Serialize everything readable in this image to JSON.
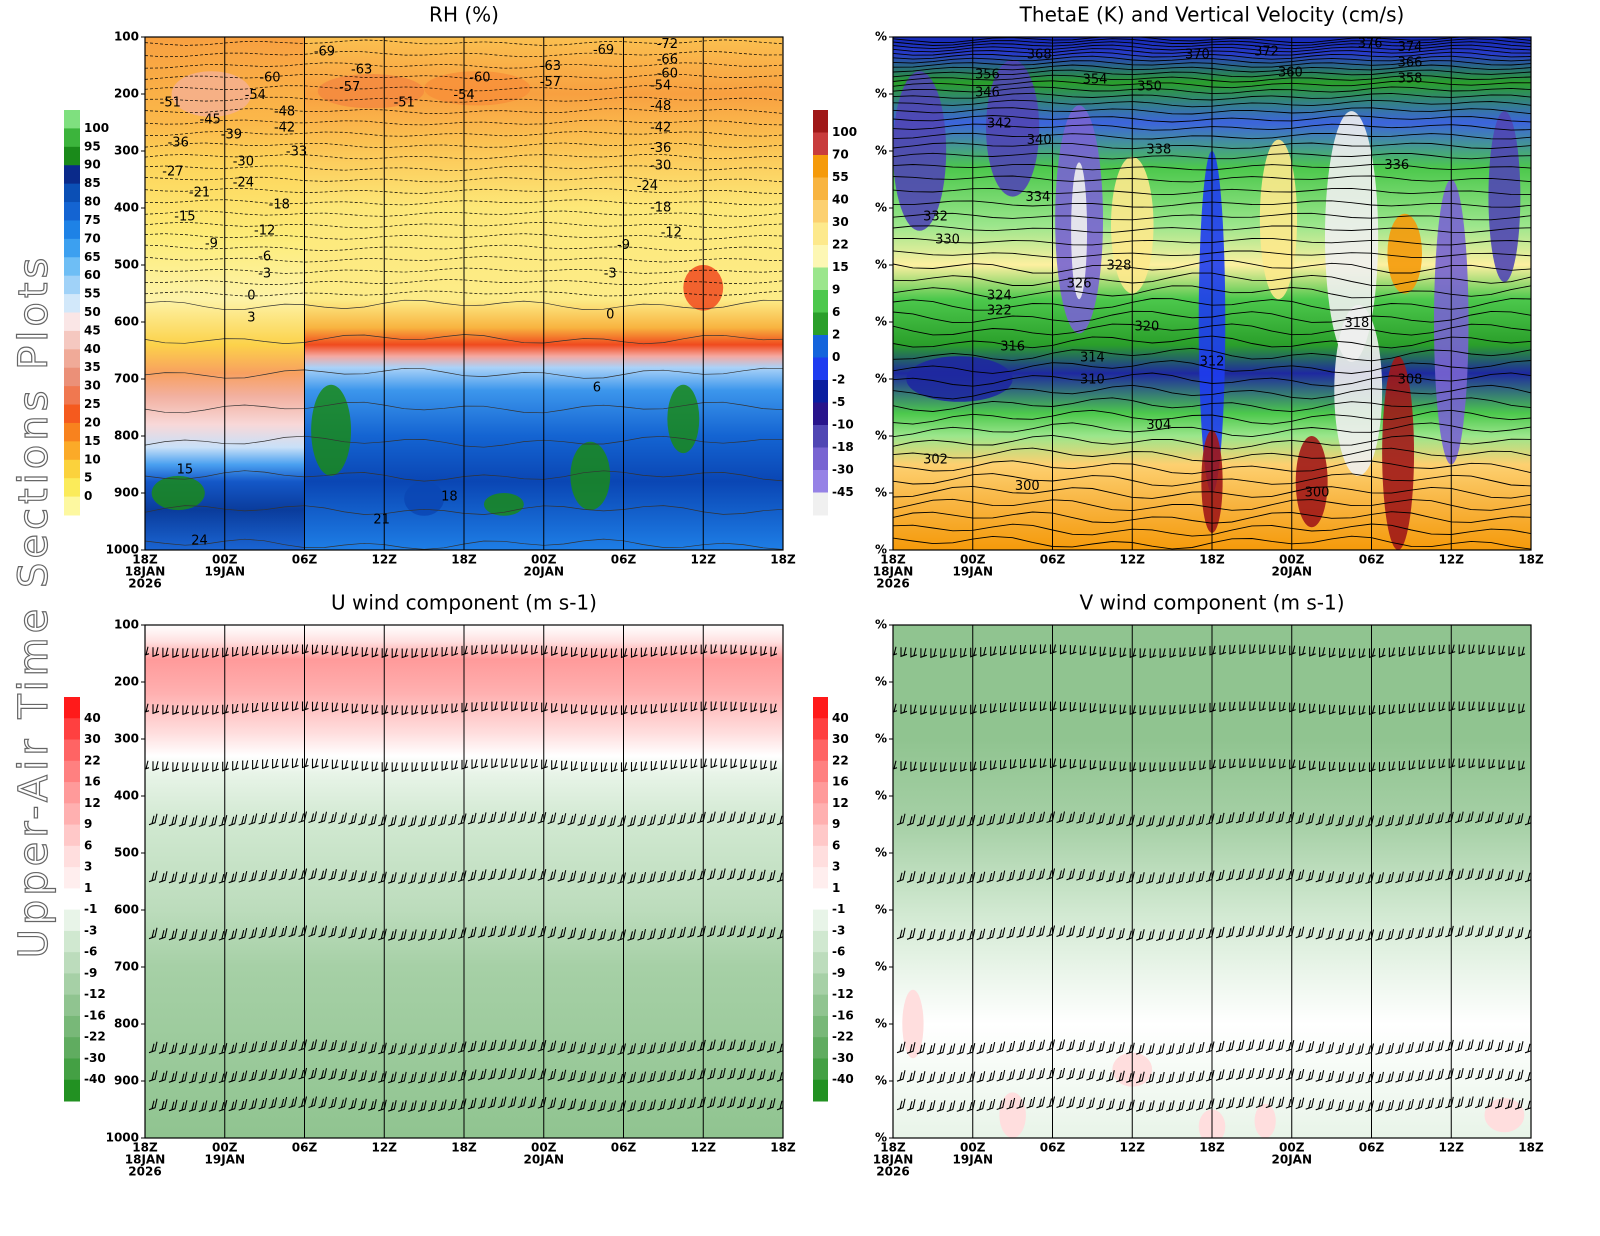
{
  "page_title": "Upper-Air Time Sections Plots",
  "chart_data": [
    {
      "type": "contour",
      "title": "RH (%)",
      "xlim": [
        0,
        48
      ],
      "xticks": [
        {
          "value": 0,
          "label": "18Z"
        },
        {
          "value": 6,
          "label": "00Z"
        },
        {
          "value": 12,
          "label": "06Z"
        },
        {
          "value": 18,
          "label": "12Z"
        },
        {
          "value": 24,
          "label": "18Z"
        },
        {
          "value": 30,
          "label": "00Z"
        },
        {
          "value": 36,
          "label": "06Z"
        },
        {
          "value": 42,
          "label": "12Z"
        },
        {
          "value": 48,
          "label": "18Z"
        }
      ],
      "x_date_labels": [
        {
          "value": 0,
          "lines": [
            "18JAN",
            "2026"
          ]
        },
        {
          "value": 6,
          "lines": [
            "19JAN"
          ]
        },
        {
          "value": 30,
          "lines": [
            "20JAN"
          ]
        }
      ],
      "ylim": [
        1000,
        100
      ],
      "yticks": [
        100,
        200,
        300,
        400,
        500,
        600,
        700,
        800,
        900,
        1000
      ],
      "colorbar": {
        "levels": [
          100,
          95,
          90,
          85,
          80,
          75,
          70,
          65,
          60,
          55,
          50,
          45,
          40,
          35,
          30,
          25,
          20,
          15,
          10,
          5,
          0
        ],
        "colors": [
          "#7fe07f",
          "#3cb43c",
          "#1a8a1a",
          "#0a2a8a",
          "#0b4fb5",
          "#1464d2",
          "#1e82e6",
          "#3ca0f0",
          "#6ebef5",
          "#a0d2f8",
          "#d2e8fa",
          "#fae6e6",
          "#f5c8c0",
          "#f0aa98",
          "#eb9078",
          "#f07850",
          "#f55a1e",
          "#f8821e",
          "#fbaa28",
          "#fbd23c",
          "#fbeb5a",
          "#fdf8a0"
        ]
      },
      "contour_labels": [
        {
          "value": -69,
          "time": 13.5,
          "pressure": 126
        },
        {
          "value": -63,
          "time": 16.3,
          "pressure": 158
        },
        {
          "value": -60,
          "time": 9.4,
          "pressure": 172
        },
        {
          "value": -57,
          "time": 15.4,
          "pressure": 189
        },
        {
          "value": -54,
          "time": 8.3,
          "pressure": 203
        },
        {
          "value": -51,
          "time": 1.9,
          "pressure": 216
        },
        {
          "value": -48,
          "time": 10.5,
          "pressure": 232
        },
        {
          "value": -45,
          "time": 4.9,
          "pressure": 246
        },
        {
          "value": -42,
          "time": 10.5,
          "pressure": 260
        },
        {
          "value": -39,
          "time": 6.5,
          "pressure": 272
        },
        {
          "value": -36,
          "time": 2.5,
          "pressure": 286
        },
        {
          "value": -33,
          "time": 11.4,
          "pressure": 302
        },
        {
          "value": -30,
          "time": 7.4,
          "pressure": 319
        },
        {
          "value": -27,
          "time": 2.1,
          "pressure": 337
        },
        {
          "value": -24,
          "time": 7.4,
          "pressure": 356
        },
        {
          "value": -21,
          "time": 4.1,
          "pressure": 374
        },
        {
          "value": -18,
          "time": 10.1,
          "pressure": 395
        },
        {
          "value": -15,
          "time": 3.0,
          "pressure": 416
        },
        {
          "value": -12,
          "time": 9.0,
          "pressure": 440
        },
        {
          "value": -9,
          "time": 5.0,
          "pressure": 463
        },
        {
          "value": -6,
          "time": 9.0,
          "pressure": 486
        },
        {
          "value": -3,
          "time": 9.0,
          "pressure": 516
        },
        {
          "value": 0,
          "time": 8.0,
          "pressure": 554
        },
        {
          "value": 3,
          "time": 8.0,
          "pressure": 593
        },
        {
          "value": 6,
          "time": 34.0,
          "pressure": 716
        },
        {
          "value": 15,
          "time": 3.0,
          "pressure": 860
        },
        {
          "value": 18,
          "time": 22.9,
          "pressure": 907
        },
        {
          "value": 21,
          "time": 17.8,
          "pressure": 947
        },
        {
          "value": 24,
          "time": 4.1,
          "pressure": 984
        },
        {
          "value": -60,
          "time": 25.2,
          "pressure": 172
        },
        {
          "value": -54,
          "time": 24.0,
          "pressure": 203
        },
        {
          "value": -51,
          "time": 19.5,
          "pressure": 216
        },
        {
          "value": -63,
          "time": 30.5,
          "pressure": 152
        },
        {
          "value": -57,
          "time": 30.5,
          "pressure": 180
        },
        {
          "value": -69,
          "time": 34.5,
          "pressure": 124
        },
        {
          "value": -72,
          "time": 39.3,
          "pressure": 113
        },
        {
          "value": -66,
          "time": 39.3,
          "pressure": 140
        },
        {
          "value": -60,
          "time": 39.3,
          "pressure": 165
        },
        {
          "value": -54,
          "time": 38.8,
          "pressure": 186
        },
        {
          "value": -48,
          "time": 38.8,
          "pressure": 222
        },
        {
          "value": -42,
          "time": 38.8,
          "pressure": 260
        },
        {
          "value": -36,
          "time": 38.8,
          "pressure": 296
        },
        {
          "value": -30,
          "time": 38.8,
          "pressure": 326
        },
        {
          "value": -24,
          "time": 37.8,
          "pressure": 362
        },
        {
          "value": -18,
          "time": 38.8,
          "pressure": 400
        },
        {
          "value": -12,
          "time": 39.6,
          "pressure": 444
        },
        {
          "value": -9,
          "time": 36.0,
          "pressure": 466
        },
        {
          "value": -3,
          "time": 35.0,
          "pressure": 516
        },
        {
          "value": 0,
          "time": 35.0,
          "pressure": 588
        }
      ]
    },
    {
      "type": "contour",
      "title": "ThetaE (K) and Vertical Velocity (cm/s)",
      "xlim": [
        0,
        48
      ],
      "xticks": [
        {
          "value": 0,
          "label": "18Z"
        },
        {
          "value": 6,
          "label": "00Z"
        },
        {
          "value": 12,
          "label": "06Z"
        },
        {
          "value": 18,
          "label": "12Z"
        },
        {
          "value": 24,
          "label": "18Z"
        },
        {
          "value": 30,
          "label": "00Z"
        },
        {
          "value": 36,
          "label": "06Z"
        },
        {
          "value": 42,
          "label": "12Z"
        },
        {
          "value": 48,
          "label": "18Z"
        }
      ],
      "x_date_labels": [
        {
          "value": 0,
          "lines": [
            "18JAN",
            "2026"
          ]
        },
        {
          "value": 6,
          "lines": [
            "19JAN"
          ]
        },
        {
          "value": 30,
          "lines": [
            "20JAN"
          ]
        }
      ],
      "ylim": [
        1000,
        100
      ],
      "yticks": [
        {
          "value": 100,
          "label": "%"
        },
        {
          "value": 200,
          "label": "%"
        },
        {
          "value": 300,
          "label": "%"
        },
        {
          "value": 400,
          "label": "%"
        },
        {
          "value": 500,
          "label": "%"
        },
        {
          "value": 600,
          "label": "%"
        },
        {
          "value": 700,
          "label": "%"
        },
        {
          "value": 800,
          "label": "%"
        },
        {
          "value": 900,
          "label": "%"
        },
        {
          "value": 1000,
          "label": "%"
        }
      ],
      "colorbar": {
        "levels": [
          100,
          70,
          55,
          40,
          30,
          22,
          15,
          9,
          6,
          2,
          0,
          -2,
          -5,
          -10,
          -18,
          -30,
          -45
        ],
        "colors": [
          "#a01818",
          "#c83c3c",
          "#f59a0a",
          "#f8b440",
          "#fcd070",
          "#fde98c",
          "#fdf7b4",
          "#9be68c",
          "#4cc84c",
          "#2a9f2a",
          "#1464dc",
          "#1e3cf0",
          "#0a1ea0",
          "#28148c",
          "#5046b4",
          "#7864d2",
          "#9682e6",
          "#f0f0f0"
        ]
      },
      "contour_labels": [
        {
          "value": 368,
          "time": 11.0,
          "pressure": 132
        },
        {
          "value": 356,
          "time": 7.1,
          "pressure": 167
        },
        {
          "value": 354,
          "time": 15.2,
          "pressure": 175
        },
        {
          "value": 350,
          "time": 19.3,
          "pressure": 188
        },
        {
          "value": 346,
          "time": 7.1,
          "pressure": 198
        },
        {
          "value": 342,
          "time": 8.0,
          "pressure": 253
        },
        {
          "value": 340,
          "time": 11.0,
          "pressure": 282
        },
        {
          "value": 338,
          "time": 20.0,
          "pressure": 298
        },
        {
          "value": 334,
          "time": 10.9,
          "pressure": 382
        },
        {
          "value": 332,
          "time": 3.2,
          "pressure": 416
        },
        {
          "value": 330,
          "time": 4.1,
          "pressure": 456
        },
        {
          "value": 328,
          "time": 17.0,
          "pressure": 502
        },
        {
          "value": 326,
          "time": 14.0,
          "pressure": 533
        },
        {
          "value": 324,
          "time": 8.0,
          "pressure": 554
        },
        {
          "value": 322,
          "time": 8.0,
          "pressure": 581
        },
        {
          "value": 320,
          "time": 19.1,
          "pressure": 609
        },
        {
          "value": 316,
          "time": 9.0,
          "pressure": 644
        },
        {
          "value": 314,
          "time": 15.0,
          "pressure": 663
        },
        {
          "value": 312,
          "time": 24.0,
          "pressure": 670
        },
        {
          "value": 310,
          "time": 15.0,
          "pressure": 702
        },
        {
          "value": 304,
          "time": 20.0,
          "pressure": 782
        },
        {
          "value": 302,
          "time": 3.2,
          "pressure": 842
        },
        {
          "value": 300,
          "time": 10.1,
          "pressure": 889
        },
        {
          "value": 370,
          "time": 22.9,
          "pressure": 132
        },
        {
          "value": 372,
          "time": 28.1,
          "pressure": 126
        },
        {
          "value": 360,
          "time": 29.9,
          "pressure": 163
        },
        {
          "value": 376,
          "time": 35.9,
          "pressure": 112
        },
        {
          "value": 374,
          "time": 38.9,
          "pressure": 118
        },
        {
          "value": 366,
          "time": 38.9,
          "pressure": 146
        },
        {
          "value": 358,
          "time": 38.9,
          "pressure": 174
        },
        {
          "value": 336,
          "time": 37.9,
          "pressure": 325
        },
        {
          "value": 308,
          "time": 38.9,
          "pressure": 702
        },
        {
          "value": 300,
          "time": 31.9,
          "pressure": 900
        },
        {
          "value": 318,
          "time": 34.9,
          "pressure": 603
        }
      ]
    },
    {
      "type": "contour",
      "title": "U wind component (m s-1)",
      "xlim": [
        0,
        48
      ],
      "xticks": [
        {
          "value": 0,
          "label": "18Z"
        },
        {
          "value": 6,
          "label": "00Z"
        },
        {
          "value": 12,
          "label": "06Z"
        },
        {
          "value": 18,
          "label": "12Z"
        },
        {
          "value": 24,
          "label": "18Z"
        },
        {
          "value": 30,
          "label": "00Z"
        },
        {
          "value": 36,
          "label": "06Z"
        },
        {
          "value": 42,
          "label": "12Z"
        },
        {
          "value": 48,
          "label": "18Z"
        }
      ],
      "x_date_labels": [
        {
          "value": 0,
          "lines": [
            "18JAN",
            "2026"
          ]
        },
        {
          "value": 6,
          "lines": [
            "19JAN"
          ]
        },
        {
          "value": 30,
          "lines": [
            "20JAN"
          ]
        }
      ],
      "ylim": [
        1000,
        100
      ],
      "yticks": [
        100,
        200,
        300,
        400,
        500,
        600,
        700,
        800,
        900,
        1000
      ],
      "colorbar": {
        "levels": [
          40,
          30,
          22,
          16,
          12,
          9,
          6,
          3,
          1,
          -1,
          -3,
          -6,
          -9,
          -12,
          -16,
          -22,
          -30,
          -40
        ],
        "colors": [
          "#ff1a1a",
          "#ff4040",
          "#ff6464",
          "#ff8080",
          "#ff9a9a",
          "#ffb0b0",
          "#ffc8c8",
          "#ffdede",
          "#ffeeee",
          "#ffffff",
          "#e8f4e8",
          "#d0e8d0",
          "#bcdcbc",
          "#a6d0a6",
          "#90c490",
          "#78b878",
          "#60ac60",
          "#44a044",
          "#229122"
        ]
      }
    },
    {
      "type": "contour",
      "title": "V wind component (m s-1)",
      "xlim": [
        0,
        48
      ],
      "xticks": [
        {
          "value": 0,
          "label": "18Z"
        },
        {
          "value": 6,
          "label": "00Z"
        },
        {
          "value": 12,
          "label": "06Z"
        },
        {
          "value": 18,
          "label": "12Z"
        },
        {
          "value": 24,
          "label": "18Z"
        },
        {
          "value": 30,
          "label": "00Z"
        },
        {
          "value": 36,
          "label": "06Z"
        },
        {
          "value": 42,
          "label": "12Z"
        },
        {
          "value": 48,
          "label": "18Z"
        }
      ],
      "x_date_labels": [
        {
          "value": 0,
          "lines": [
            "18JAN",
            "2026"
          ]
        },
        {
          "value": 6,
          "lines": [
            "19JAN"
          ]
        },
        {
          "value": 30,
          "lines": [
            "20JAN"
          ]
        }
      ],
      "ylim": [
        1000,
        100
      ],
      "yticks": [
        {
          "value": 100,
          "label": "%"
        },
        {
          "value": 200,
          "label": "%"
        },
        {
          "value": 300,
          "label": "%"
        },
        {
          "value": 400,
          "label": "%"
        },
        {
          "value": 500,
          "label": "%"
        },
        {
          "value": 600,
          "label": "%"
        },
        {
          "value": 700,
          "label": "%"
        },
        {
          "value": 800,
          "label": "%"
        },
        {
          "value": 900,
          "label": "%"
        },
        {
          "value": 1000,
          "label": "%"
        }
      ],
      "colorbar": {
        "levels": [
          40,
          30,
          22,
          16,
          12,
          9,
          6,
          3,
          1,
          -1,
          -3,
          -6,
          -9,
          -12,
          -16,
          -22,
          -30,
          -40
        ],
        "colors": [
          "#ff1a1a",
          "#ff4040",
          "#ff6464",
          "#ff8080",
          "#ff9a9a",
          "#ffb0b0",
          "#ffc8c8",
          "#ffdede",
          "#ffeeee",
          "#ffffff",
          "#e8f4e8",
          "#d0e8d0",
          "#bcdcbc",
          "#a6d0a6",
          "#90c490",
          "#78b878",
          "#60ac60",
          "#44a044",
          "#229122"
        ]
      }
    }
  ]
}
